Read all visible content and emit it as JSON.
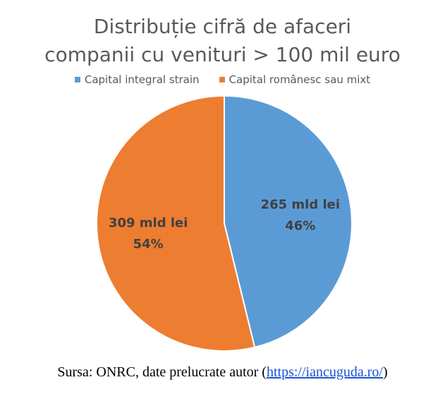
{
  "chart_data": {
    "type": "pie",
    "title_lines": [
      "Distribuție cifră de afaceri",
      "companii cu venituri > 100 mil euro"
    ],
    "legend": [
      {
        "label": "Capital integral strain",
        "color": "#5B9BD5"
      },
      {
        "label": "Capital românesc sau mixt",
        "color": "#ED7D31"
      }
    ],
    "slices": [
      {
        "name": "Capital integral strain",
        "value": 265,
        "percent": 46,
        "value_label": "265 mld lei",
        "percent_label": "46%",
        "color": "#5B9BD5"
      },
      {
        "name": "Capital românesc sau mixt",
        "value": 309,
        "percent": 54,
        "value_label": "309 mld lei",
        "percent_label": "54%",
        "color": "#ED7D31"
      }
    ],
    "legend_position": "top"
  },
  "source": {
    "prefix": "Sursa: ONRC, date prelucrate autor (",
    "link": "https://iancuguda.ro/",
    "suffix": ")"
  }
}
